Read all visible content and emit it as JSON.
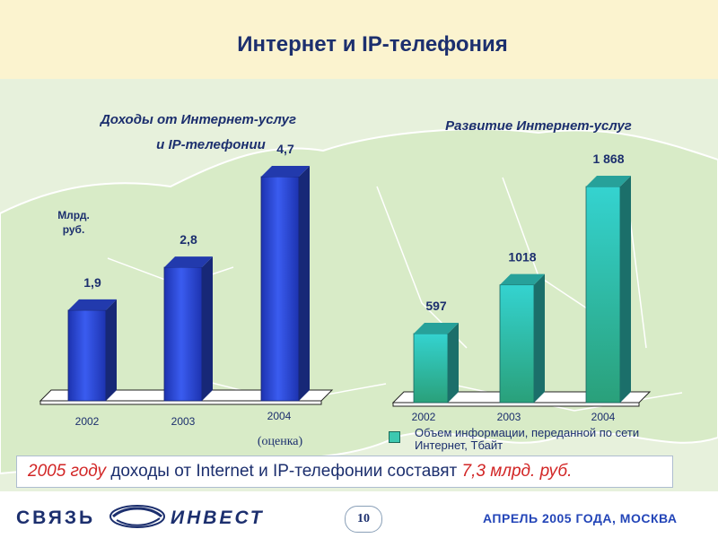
{
  "title": "Интернет и IP-телефония",
  "chart_data": [
    {
      "type": "bar",
      "title_line1": "Доходы от Интернет-услуг",
      "title_line2": "и IP-телефонии",
      "ylabel_line1": "Млрд.",
      "ylabel_line2": "руб.",
      "categories": [
        "2002",
        "2003",
        "2004"
      ],
      "values": [
        1.9,
        2.8,
        4.7
      ],
      "value_labels": [
        "1,9",
        "2,8",
        "4,7"
      ],
      "annotation": "(оценка)",
      "bar_color": "#2a48d8"
    },
    {
      "type": "bar",
      "title": "Развитие Интернет-услуг",
      "categories": [
        "2002",
        "2003",
        "2004"
      ],
      "values": [
        597,
        1018,
        1868
      ],
      "value_labels": [
        "597",
        "1018",
        "1 868"
      ],
      "legend_line1": "Объем информации, переданной по сети",
      "legend_line2": "Интернет, Тбайт",
      "bar_color": "#31c9c0"
    }
  ],
  "summary": {
    "part1": "2005 году",
    "part2": " доходы от Internet и IP-телефонии составят ",
    "part3": "7,3 млрд. руб."
  },
  "footer": {
    "logo_left": "СВЯЗЬ",
    "logo_right": "ИНВЕСТ",
    "page_number": "10",
    "event": "АПРЕЛЬ 2005 ГОДА, МОСКВА"
  }
}
